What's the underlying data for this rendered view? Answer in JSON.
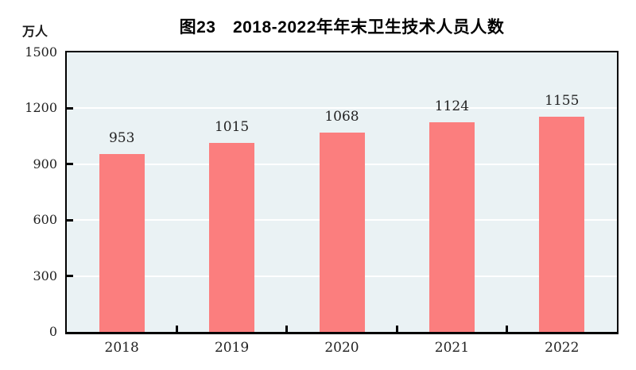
{
  "header": {
    "title": "图23　2018-2022年年末卫生技术人员人数",
    "unit_label": "万人"
  },
  "chart_data": {
    "type": "bar",
    "title": "图23　2018-2022年年末卫生技术人员人数",
    "categories": [
      "2018",
      "2019",
      "2020",
      "2021",
      "2022"
    ],
    "values": [
      953,
      1015,
      1068,
      1124,
      1155
    ],
    "value_labels": [
      "953",
      "1015",
      "1068",
      "1124",
      "1155"
    ],
    "xlabel": "",
    "ylabel": "万人",
    "ylim": [
      0,
      1500
    ],
    "yticks": [
      0,
      300,
      600,
      900,
      1200,
      1500
    ],
    "grid": true,
    "legend_position": "none",
    "colors": {
      "bar": "#fb7e7e",
      "plot_background": "#eaf2f4",
      "gridline": "#ffffff",
      "axis": "#000000",
      "text": "#222222"
    }
  }
}
